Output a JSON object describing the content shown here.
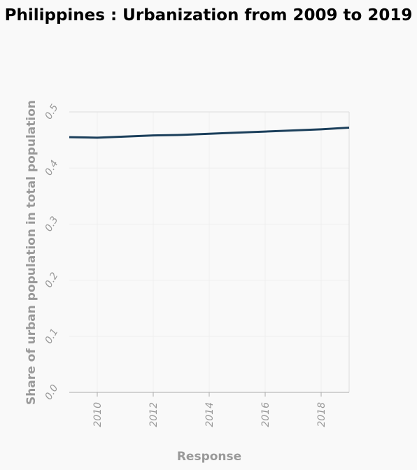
{
  "chart_data": {
    "type": "line",
    "title": "Philippines : Urbanization from 2009 to 2019",
    "xlabel": "Response",
    "ylabel": "Share of urban population in total population",
    "xlim": [
      2009,
      2019
    ],
    "ylim": [
      0,
      0.5
    ],
    "x_ticks": [
      "2010",
      "2012",
      "2014",
      "2016",
      "2018"
    ],
    "y_ticks": [
      "0.0",
      "0.1",
      "0.2",
      "0.3",
      "0.4",
      "0.5"
    ],
    "grid": true,
    "series": [
      {
        "x": [
          2009,
          2010,
          2011,
          2012,
          2013,
          2014,
          2015,
          2016,
          2017,
          2018,
          2019
        ],
        "values": [
          0.455,
          0.454,
          0.456,
          0.458,
          0.459,
          0.461,
          0.463,
          0.465,
          0.467,
          0.469,
          0.472
        ],
        "color": "#1b3f5b"
      }
    ]
  }
}
